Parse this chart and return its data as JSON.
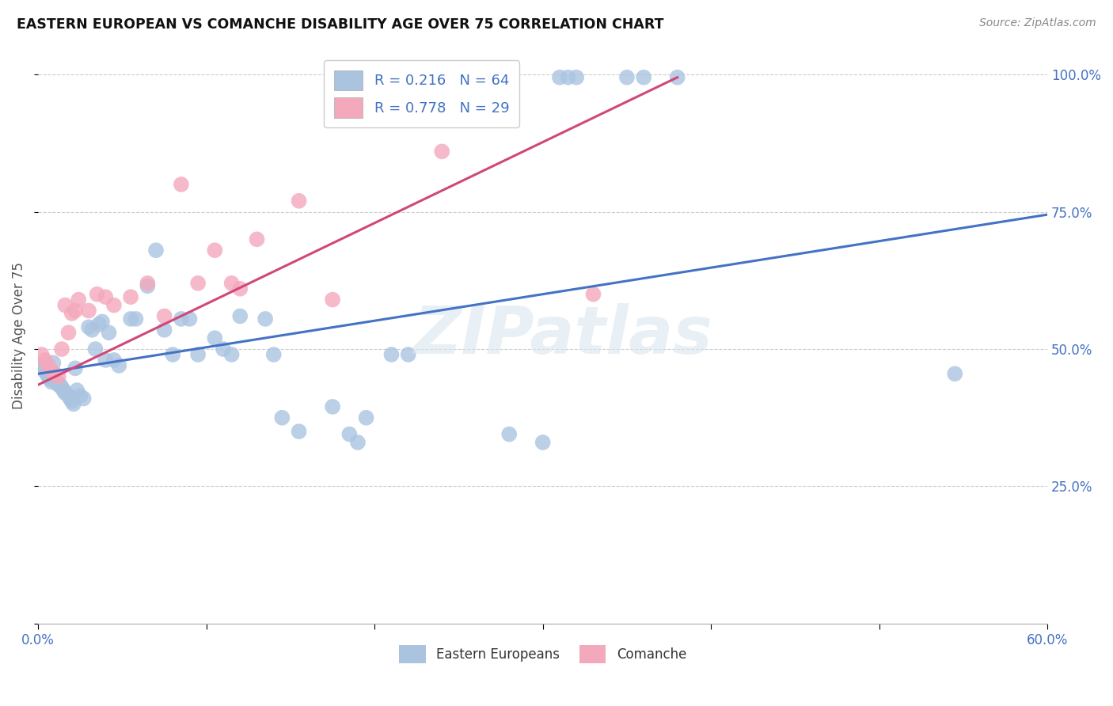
{
  "title": "EASTERN EUROPEAN VS COMANCHE DISABILITY AGE OVER 75 CORRELATION CHART",
  "source": "Source: ZipAtlas.com",
  "ylabel": "Disability Age Over 75",
  "xlim": [
    0.0,
    0.6
  ],
  "ylim": [
    0.0,
    1.05
  ],
  "xticks": [
    0.0,
    0.1,
    0.2,
    0.3,
    0.4,
    0.5,
    0.6
  ],
  "xticklabels": [
    "0.0%",
    "",
    "",
    "",
    "",
    "",
    "60.0%"
  ],
  "ytick_positions": [
    0.0,
    0.25,
    0.5,
    0.75,
    1.0
  ],
  "yticklabels": [
    "",
    "25.0%",
    "50.0%",
    "75.0%",
    "100.0%"
  ],
  "legend_blue_label": "R = 0.216   N = 64",
  "legend_pink_label": "R = 0.778   N = 29",
  "legend_bottom_blue": "Eastern Europeans",
  "legend_bottom_pink": "Comanche",
  "blue_color": "#aac4e0",
  "pink_color": "#f4a8bc",
  "blue_line_color": "#4472c4",
  "pink_line_color": "#d04878",
  "watermark": "ZIPatlas",
  "blue_scatter_x": [
    0.002,
    0.003,
    0.004,
    0.005,
    0.006,
    0.007,
    0.008,
    0.009,
    0.01,
    0.011,
    0.012,
    0.013,
    0.014,
    0.015,
    0.016,
    0.018,
    0.019,
    0.02,
    0.021,
    0.022,
    0.023,
    0.025,
    0.027,
    0.03,
    0.032,
    0.034,
    0.036,
    0.038,
    0.04,
    0.042,
    0.045,
    0.048,
    0.055,
    0.058,
    0.065,
    0.07,
    0.075,
    0.08,
    0.085,
    0.09,
    0.095,
    0.105,
    0.11,
    0.115,
    0.12,
    0.135,
    0.14,
    0.145,
    0.155,
    0.175,
    0.185,
    0.19,
    0.195,
    0.21,
    0.22,
    0.28,
    0.3,
    0.31,
    0.315,
    0.32,
    0.35,
    0.36,
    0.38,
    0.545
  ],
  "blue_scatter_y": [
    0.47,
    0.465,
    0.46,
    0.455,
    0.45,
    0.445,
    0.44,
    0.475,
    0.45,
    0.44,
    0.435,
    0.435,
    0.43,
    0.425,
    0.42,
    0.415,
    0.41,
    0.405,
    0.4,
    0.465,
    0.425,
    0.415,
    0.41,
    0.54,
    0.535,
    0.5,
    0.545,
    0.55,
    0.48,
    0.53,
    0.48,
    0.47,
    0.555,
    0.555,
    0.615,
    0.68,
    0.535,
    0.49,
    0.555,
    0.555,
    0.49,
    0.52,
    0.5,
    0.49,
    0.56,
    0.555,
    0.49,
    0.375,
    0.35,
    0.395,
    0.345,
    0.33,
    0.375,
    0.49,
    0.49,
    0.345,
    0.33,
    0.995,
    0.995,
    0.995,
    0.995,
    0.995,
    0.995,
    0.455
  ],
  "pink_scatter_x": [
    0.002,
    0.004,
    0.006,
    0.008,
    0.01,
    0.012,
    0.014,
    0.016,
    0.018,
    0.02,
    0.022,
    0.024,
    0.03,
    0.035,
    0.04,
    0.045,
    0.055,
    0.065,
    0.075,
    0.085,
    0.095,
    0.105,
    0.115,
    0.12,
    0.13,
    0.155,
    0.175,
    0.24,
    0.33
  ],
  "pink_scatter_y": [
    0.49,
    0.48,
    0.47,
    0.46,
    0.455,
    0.45,
    0.5,
    0.58,
    0.53,
    0.565,
    0.57,
    0.59,
    0.57,
    0.6,
    0.595,
    0.58,
    0.595,
    0.62,
    0.56,
    0.8,
    0.62,
    0.68,
    0.62,
    0.61,
    0.7,
    0.77,
    0.59,
    0.86,
    0.6
  ],
  "blue_line_x": [
    0.0,
    0.6
  ],
  "blue_line_y": [
    0.455,
    0.745
  ],
  "pink_line_x": [
    0.0,
    0.38
  ],
  "pink_line_y": [
    0.435,
    0.995
  ]
}
